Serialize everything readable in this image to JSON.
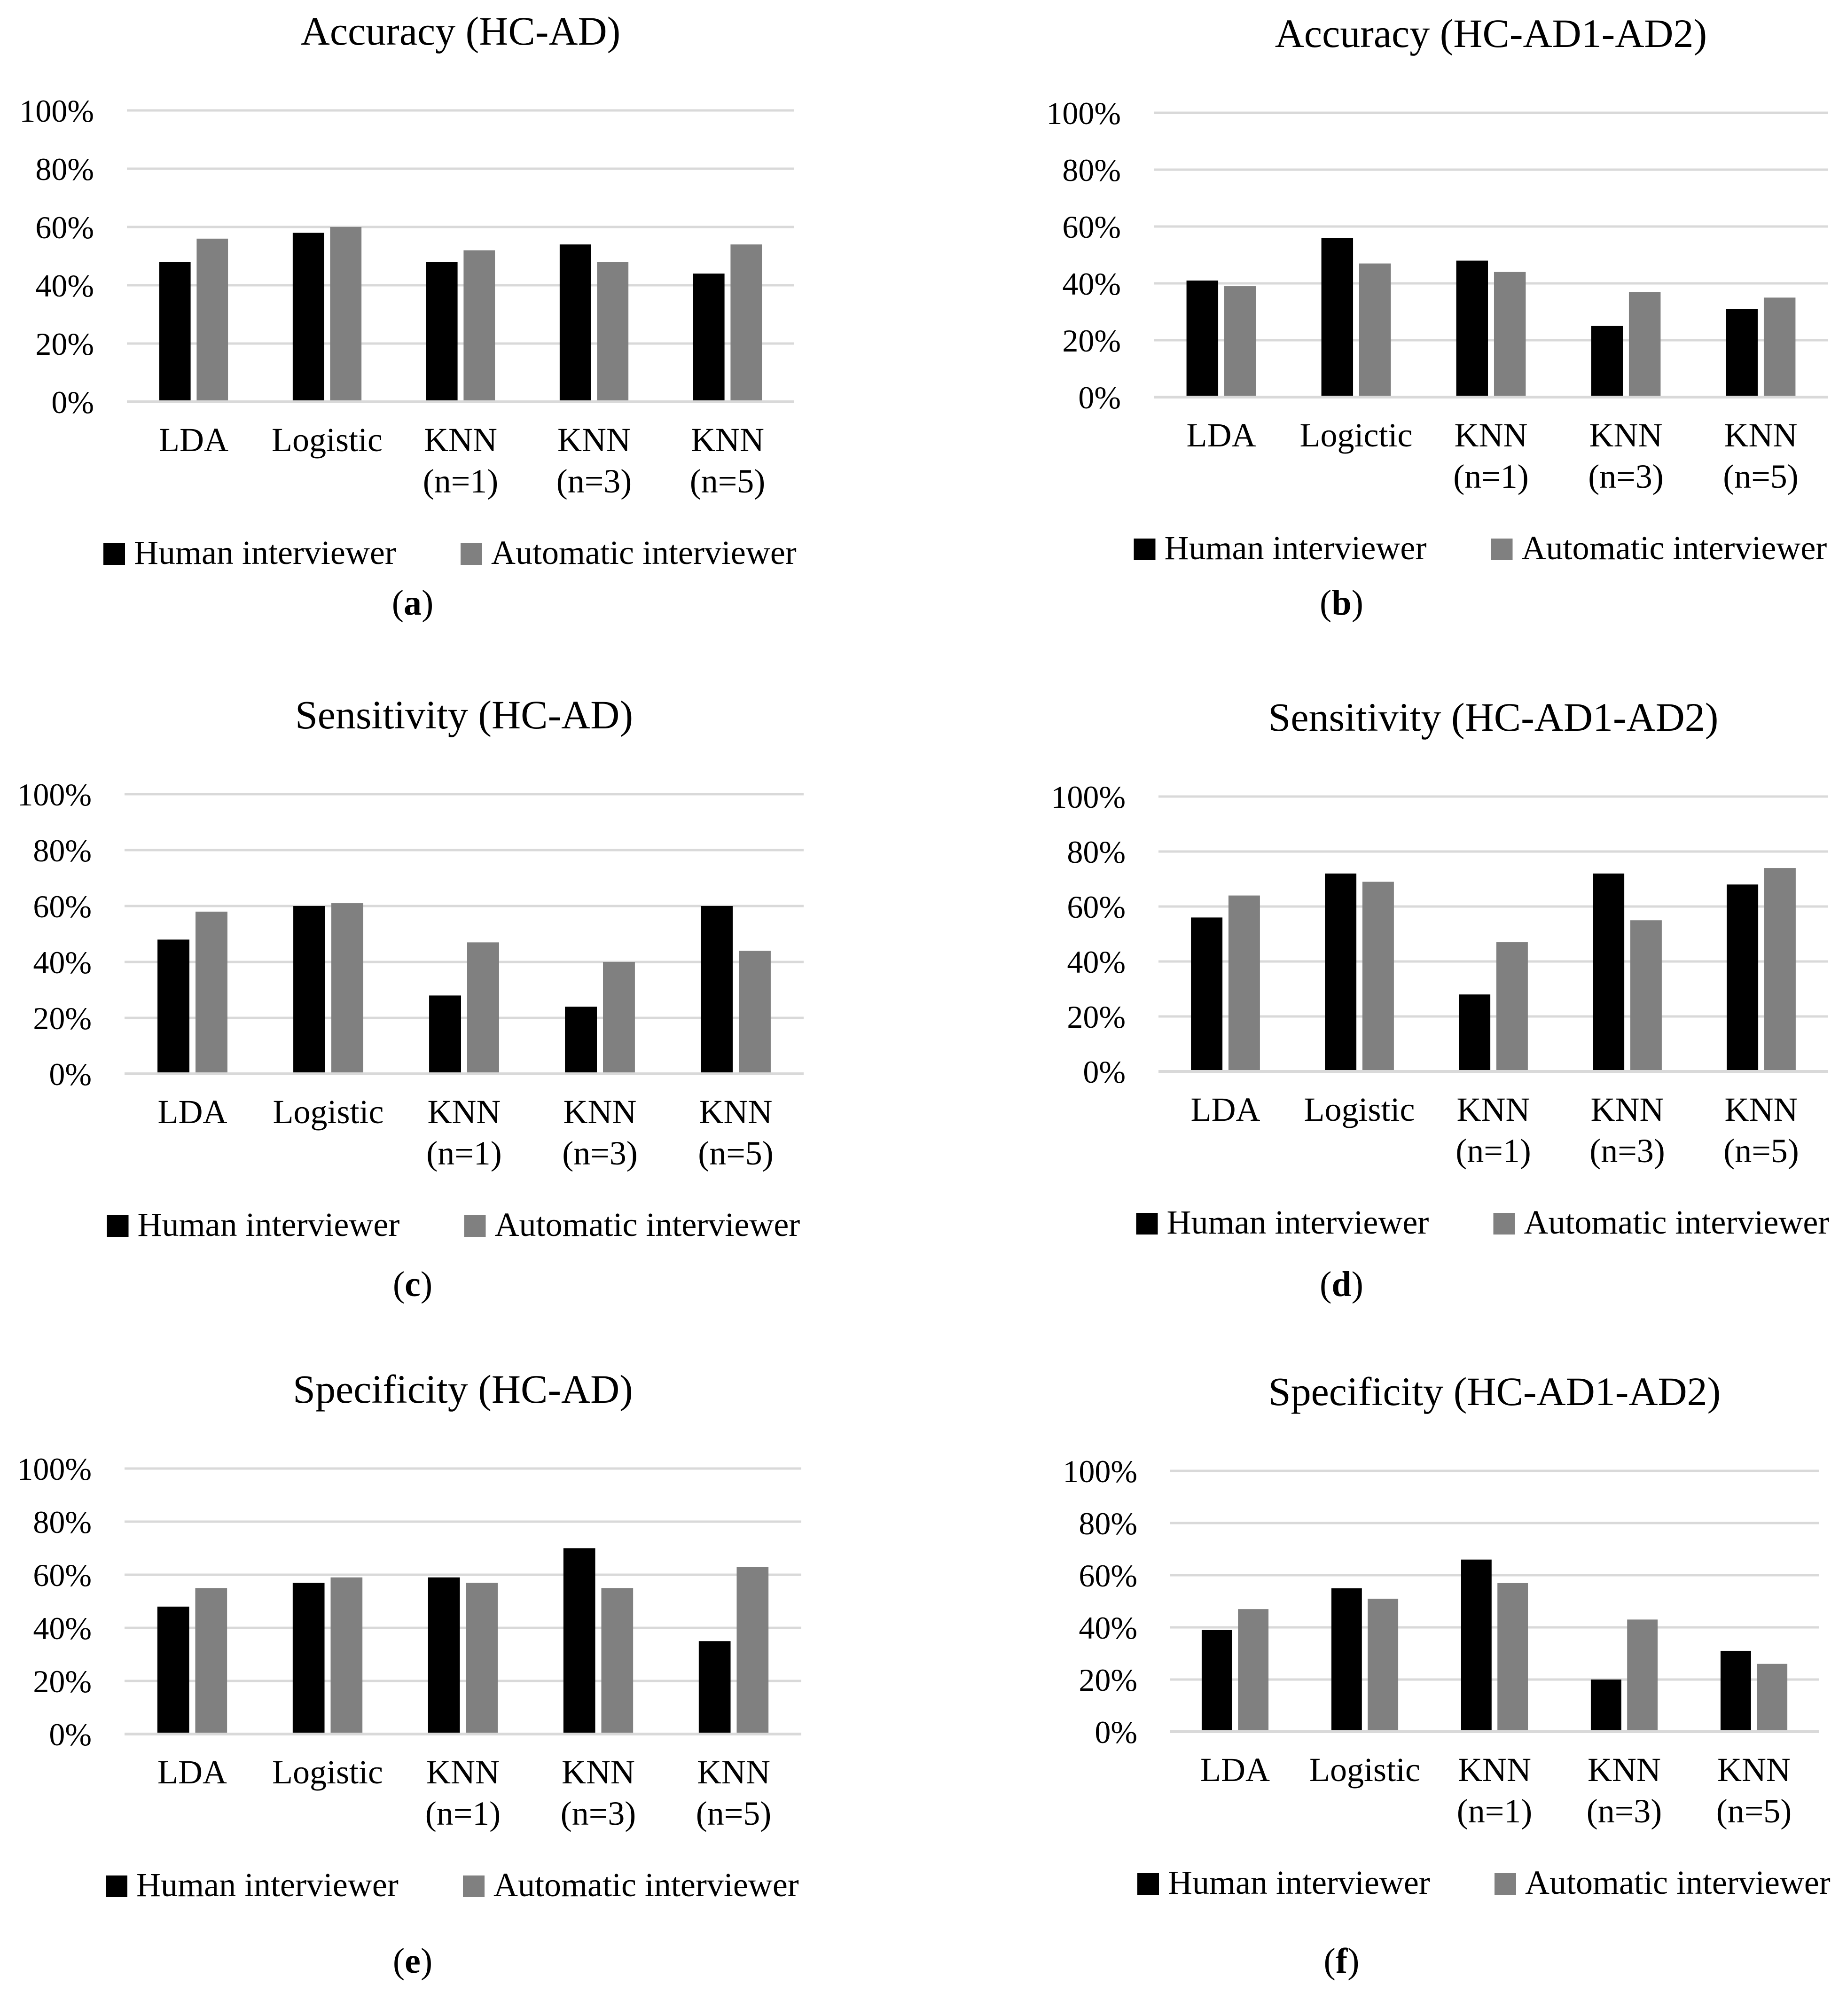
{
  "colors": {
    "human": "#000000",
    "automatic": "#808080",
    "grid": "#d9d9d9"
  },
  "chart_data": [
    {
      "type": "bar",
      "panel": "a",
      "title": "Accuracy (HC-AD)",
      "categories": [
        "LDA",
        "Logistic",
        "KNN\n(n=1)",
        "KNN\n(n=3)",
        "KNN\n(n=5)"
      ],
      "yticks": [
        "0%",
        "20%",
        "40%",
        "60%",
        "80%",
        "100%"
      ],
      "ylim": [
        0,
        100
      ],
      "series": [
        {
          "name": "Human interviewer",
          "values": [
            48,
            58,
            48,
            54,
            44
          ]
        },
        {
          "name": "Automatic interviewer",
          "values": [
            56,
            60,
            52,
            48,
            54
          ]
        }
      ],
      "legend_position": "bottom"
    },
    {
      "type": "bar",
      "panel": "b",
      "title": "Accuracy (HC-AD1-AD2)",
      "categories": [
        "LDA",
        "Logictic",
        "KNN\n(n=1)",
        "KNN\n(n=3)",
        "KNN\n(n=5)"
      ],
      "yticks": [
        "0%",
        "20%",
        "40%",
        "60%",
        "80%",
        "100%"
      ],
      "ylim": [
        0,
        100
      ],
      "series": [
        {
          "name": "Human interviewer",
          "values": [
            41,
            56,
            48,
            25,
            31
          ]
        },
        {
          "name": "Automatic interviewer",
          "values": [
            39,
            47,
            44,
            37,
            35
          ]
        }
      ],
      "legend_position": "bottom"
    },
    {
      "type": "bar",
      "panel": "c",
      "title": "Sensitivity (HC-AD)",
      "categories": [
        "LDA",
        "Logistic",
        "KNN\n(n=1)",
        "KNN\n(n=3)",
        "KNN\n(n=5)"
      ],
      "yticks": [
        "0%",
        "20%",
        "40%",
        "60%",
        "80%",
        "100%"
      ],
      "ylim": [
        0,
        100
      ],
      "series": [
        {
          "name": "Human interviewer",
          "values": [
            48,
            60,
            28,
            24,
            60
          ]
        },
        {
          "name": "Automatic interviewer",
          "values": [
            58,
            61,
            47,
            40,
            44
          ]
        }
      ],
      "legend_position": "bottom"
    },
    {
      "type": "bar",
      "panel": "d",
      "title": "Sensitivity (HC-AD1-AD2)",
      "categories": [
        "LDA",
        "Logistic",
        "KNN\n(n=1)",
        "KNN\n(n=3)",
        "KNN\n(n=5)"
      ],
      "yticks": [
        "0%",
        "20%",
        "40%",
        "60%",
        "80%",
        "100%"
      ],
      "ylim": [
        0,
        100
      ],
      "series": [
        {
          "name": "Human interviewer",
          "values": [
            56,
            72,
            28,
            72,
            68
          ]
        },
        {
          "name": "Automatic interviewer",
          "values": [
            64,
            69,
            47,
            55,
            74
          ]
        }
      ],
      "legend_position": "bottom"
    },
    {
      "type": "bar",
      "panel": "e",
      "title": "Specificity (HC-AD)",
      "categories": [
        "LDA",
        "Logistic",
        "KNN\n(n=1)",
        "KNN\n(n=3)",
        "KNN\n(n=5)"
      ],
      "yticks": [
        "0%",
        "20%",
        "40%",
        "60%",
        "80%",
        "100%"
      ],
      "ylim": [
        0,
        100
      ],
      "series": [
        {
          "name": "Human interviewer",
          "values": [
            48,
            57,
            59,
            70,
            35
          ]
        },
        {
          "name": "Automatic interviewer",
          "values": [
            55,
            59,
            57,
            55,
            63
          ]
        }
      ],
      "legend_position": "bottom"
    },
    {
      "type": "bar",
      "panel": "f",
      "title": "Specificity (HC-AD1-AD2)",
      "categories": [
        "LDA",
        "Logistic",
        "KNN\n(n=1)",
        "KNN\n(n=3)",
        "KNN\n(n=5)"
      ],
      "yticks": [
        "0%",
        "20%",
        "40%",
        "60%",
        "80%",
        "100%"
      ],
      "ylim": [
        0,
        100
      ],
      "series": [
        {
          "name": "Human interviewer",
          "values": [
            39,
            55,
            66,
            20,
            31
          ]
        },
        {
          "name": "Automatic interviewer",
          "values": [
            47,
            51,
            57,
            43,
            26
          ]
        }
      ],
      "legend_position": "bottom"
    }
  ],
  "captions": [
    {
      "open": "(",
      "label": "a",
      "close": ")"
    },
    {
      "open": "(",
      "label": "b",
      "close": ")"
    },
    {
      "open": "(",
      "label": "c",
      "close": ")"
    },
    {
      "open": "(",
      "label": "d",
      "close": ")"
    },
    {
      "open": "(",
      "label": "e",
      "close": ")"
    },
    {
      "open": "(",
      "label": "f",
      "close": ")"
    }
  ]
}
